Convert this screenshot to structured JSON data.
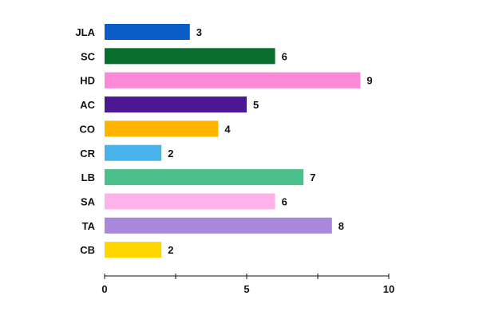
{
  "chart_data": {
    "type": "bar",
    "orientation": "horizontal",
    "title": "",
    "xlabel": "",
    "ylabel": "",
    "categories": [
      "JLA",
      "SC",
      "HD",
      "AC",
      "CO",
      "CR",
      "LB",
      "SA",
      "TA",
      "CB"
    ],
    "values": [
      3,
      6,
      9,
      5,
      4,
      2,
      7,
      6,
      8,
      2
    ],
    "colors": [
      "#0a5cc7",
      "#086d2d",
      "#fb88d8",
      "#4b1792",
      "#ffb400",
      "#49b2ea",
      "#4cc08b",
      "#fdb3ea",
      "#a788db",
      "#ffd600"
    ],
    "xlim": [
      0,
      10
    ],
    "x_ticks": [
      0,
      2.5,
      5,
      7.5,
      10
    ],
    "x_tick_labels": [
      "0",
      "",
      "5",
      "",
      "10"
    ],
    "grid": false,
    "legend": "none",
    "data_labels": true
  }
}
